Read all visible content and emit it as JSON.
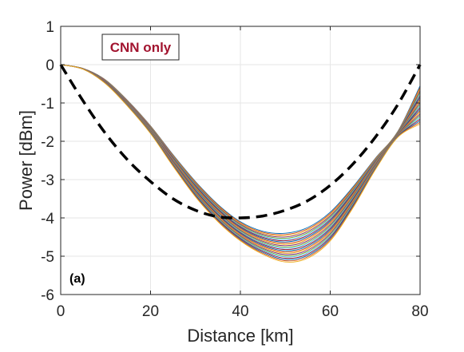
{
  "chart_data": {
    "type": "line",
    "title": "",
    "xlabel": "Distance [km]",
    "ylabel": "Power [dBm]",
    "xlim": [
      0,
      80
    ],
    "ylim": [
      -6,
      1
    ],
    "xticks": [
      0,
      20,
      40,
      60,
      80
    ],
    "yticks": [
      -6,
      -5,
      -4,
      -3,
      -2,
      -1,
      0,
      1
    ],
    "xtick_labels": [
      "0",
      "20",
      "40",
      "60",
      "80"
    ],
    "ytick_labels": [
      "-6",
      "-5",
      "-4",
      "-3",
      "-2",
      "-1",
      "0",
      "1"
    ],
    "grid": true,
    "legend_label": "CNN only",
    "panel_label": "(a)",
    "legend_color": "#a2142f",
    "band": {
      "series_count": 24,
      "x": [
        0,
        5,
        10,
        15,
        20,
        25,
        30,
        35,
        40,
        45,
        50,
        55,
        60,
        65,
        70,
        75,
        80
      ],
      "upper": [
        0,
        -0.1,
        -0.4,
        -0.95,
        -1.6,
        -2.35,
        -3.05,
        -3.65,
        -4.1,
        -4.35,
        -4.4,
        -4.25,
        -3.85,
        -3.2,
        -2.45,
        -1.75,
        -0.55
      ],
      "lower": [
        0,
        -0.12,
        -0.5,
        -1.1,
        -1.8,
        -2.65,
        -3.45,
        -4.1,
        -4.6,
        -4.95,
        -5.15,
        -5.05,
        -4.6,
        -3.75,
        -2.75,
        -1.9,
        -1.55
      ],
      "colors": [
        "#0072bd",
        "#d95319",
        "#edb120",
        "#7e2f8e",
        "#77ac30",
        "#4dbeee",
        "#a2142f"
      ]
    },
    "series": [
      {
        "style": "dashed",
        "color": "#000000",
        "x": [
          0,
          5,
          10,
          15,
          20,
          25,
          30,
          35,
          40,
          45,
          50,
          55,
          60,
          65,
          70,
          75,
          80
        ],
        "y": [
          0,
          -0.95,
          -1.8,
          -2.5,
          -3.05,
          -3.5,
          -3.8,
          -3.97,
          -4.0,
          -3.95,
          -3.8,
          -3.55,
          -3.15,
          -2.6,
          -1.9,
          -1.05,
          0
        ]
      }
    ]
  }
}
